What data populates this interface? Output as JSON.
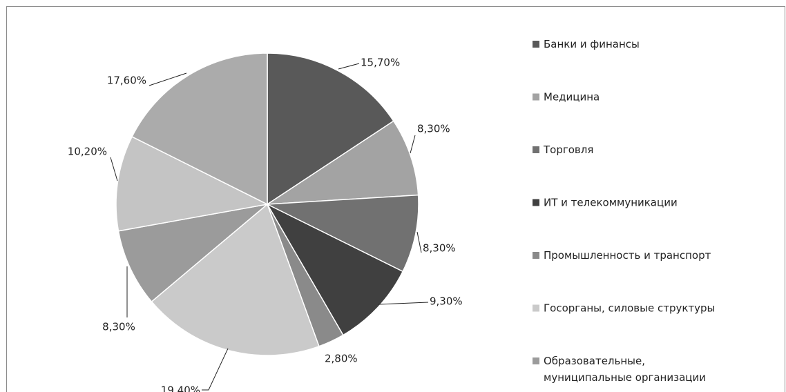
{
  "chart_data": {
    "type": "pie",
    "categories": [
      "Банки и финансы",
      "Медицина",
      "Торговля",
      "ИТ и телекоммуникации",
      "Промышленность  и транспорт",
      "Госорганы, силовые структуры",
      "Образовательные,\nмуниципальные организации",
      null,
      null
    ],
    "values": [
      15.7,
      8.3,
      8.3,
      9.3,
      2.8,
      19.4,
      8.3,
      10.2,
      17.6
    ],
    "value_labels": [
      "15,70%",
      "8,30%",
      "8,30%",
      "9,30%",
      "2,80%",
      "19,40%",
      "8,30%",
      "10,20%",
      "17,60%"
    ],
    "colors": [
      "#595959",
      "#a3a3a3",
      "#717171",
      "#404040",
      "#8a8a8a",
      "#cacaca",
      "#9b9b9b",
      "#c4c4c4",
      "#ababab"
    ],
    "legend": "right"
  }
}
